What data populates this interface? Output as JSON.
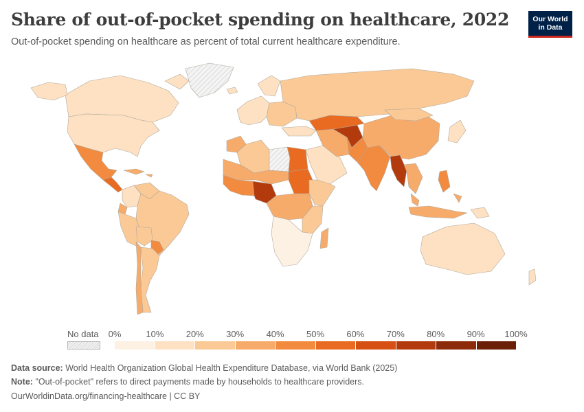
{
  "title": "Share of out-of-pocket spending on healthcare, 2022",
  "subtitle": "Out-of-pocket spending on healthcare as percent of total current healthcare expenditure.",
  "logo": {
    "line1": "Our World",
    "line2": "in Data"
  },
  "legend": {
    "no_data_label": "No data",
    "ticks": [
      "0%",
      "10%",
      "20%",
      "30%",
      "40%",
      "50%",
      "60%",
      "70%",
      "80%",
      "90%",
      "100%"
    ],
    "colors": [
      "#fdf1e3",
      "#fde1c2",
      "#fbc995",
      "#f7ab6a",
      "#f28b3f",
      "#e86b21",
      "#d65013",
      "#b23a0d",
      "#8c2a0a",
      "#6b1f07"
    ]
  },
  "regions": [
    {
      "name": "Canada",
      "bin": 1
    },
    {
      "name": "United States",
      "bin": 1
    },
    {
      "name": "Alaska",
      "bin": 1
    },
    {
      "name": "Mexico",
      "bin": 4
    },
    {
      "name": "Central America",
      "bin": 5
    },
    {
      "name": "Caribbean",
      "bin": 3
    },
    {
      "name": "Colombia",
      "bin": 1
    },
    {
      "name": "Venezuela",
      "bin": 2
    },
    {
      "name": "Ecuador",
      "bin": 3
    },
    {
      "name": "Peru",
      "bin": 2
    },
    {
      "name": "Brazil",
      "bin": 2
    },
    {
      "name": "Bolivia",
      "bin": 2
    },
    {
      "name": "Paraguay",
      "bin": 4
    },
    {
      "name": "Argentina",
      "bin": 2
    },
    {
      "name": "Chile",
      "bin": 3
    },
    {
      "name": "Greenland",
      "bin": -1
    },
    {
      "name": "Iceland",
      "bin": 1
    },
    {
      "name": "Western Europe",
      "bin": 1
    },
    {
      "name": "Eastern Europe",
      "bin": 2
    },
    {
      "name": "Russia",
      "bin": 2
    },
    {
      "name": "Turkey",
      "bin": 1
    },
    {
      "name": "Morocco",
      "bin": 3
    },
    {
      "name": "Algeria",
      "bin": 2
    },
    {
      "name": "Libya",
      "bin": -1
    },
    {
      "name": "Egypt",
      "bin": 5
    },
    {
      "name": "Sahel",
      "bin": 3
    },
    {
      "name": "West Africa",
      "bin": 4
    },
    {
      "name": "Nigeria",
      "bin": 7
    },
    {
      "name": "Sudan",
      "bin": 5
    },
    {
      "name": "Horn of Africa",
      "bin": 2
    },
    {
      "name": "Central Africa",
      "bin": 3
    },
    {
      "name": "East Africa",
      "bin": 2
    },
    {
      "name": "Southern Africa",
      "bin": 0
    },
    {
      "name": "Madagascar",
      "bin": 3
    },
    {
      "name": "Arabian Peninsula",
      "bin": 1
    },
    {
      "name": "Iran",
      "bin": 3
    },
    {
      "name": "Afghanistan",
      "bin": 7
    },
    {
      "name": "Central Asia",
      "bin": 5
    },
    {
      "name": "Pakistan",
      "bin": 4
    },
    {
      "name": "India",
      "bin": 4
    },
    {
      "name": "China",
      "bin": 3
    },
    {
      "name": "Mongolia",
      "bin": 2
    },
    {
      "name": "Myanmar / Bangladesh",
      "bin": 7
    },
    {
      "name": "Southeast Asia",
      "bin": 3
    },
    {
      "name": "Philippines",
      "bin": 4
    },
    {
      "name": "Indonesia",
      "bin": 3
    },
    {
      "name": "Japan",
      "bin": 1
    },
    {
      "name": "Australia",
      "bin": 1
    },
    {
      "name": "New Zealand",
      "bin": 1
    },
    {
      "name": "Papua New Guinea",
      "bin": 1
    }
  ],
  "footer": {
    "source_label": "Data source:",
    "source_text": "World Health Organization Global Health Expenditure Database, via World Bank (2025)",
    "note_label": "Note:",
    "note_text": "\"Out-of-pocket\" refers to direct payments made by households to healthcare providers.",
    "link": "OurWorldinData.org/financing-healthcare | CC BY"
  }
}
